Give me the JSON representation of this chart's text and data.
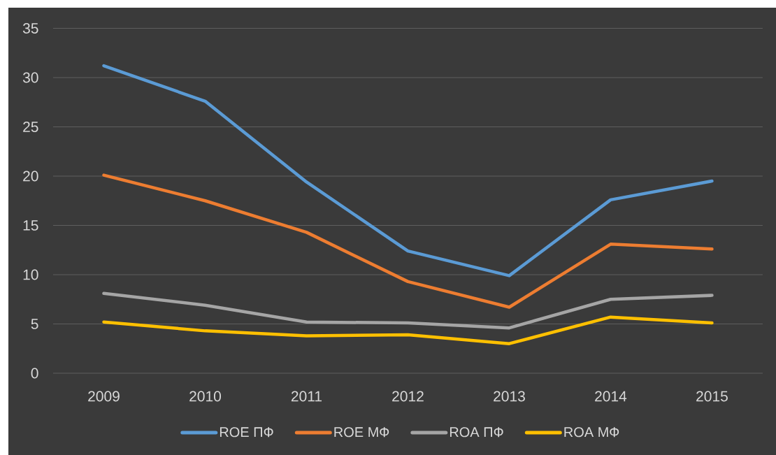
{
  "chart_data": {
    "type": "line",
    "categories": [
      "2009",
      "2010",
      "2011",
      "2012",
      "2013",
      "2014",
      "2015"
    ],
    "series": [
      {
        "name": "ROE ПФ",
        "color": "#5b9bd5",
        "values": [
          31.2,
          27.6,
          19.4,
          12.4,
          9.9,
          17.6,
          19.5
        ]
      },
      {
        "name": "ROE МФ",
        "color": "#ed7d31",
        "values": [
          20.1,
          17.5,
          14.3,
          9.3,
          6.7,
          13.1,
          12.6
        ]
      },
      {
        "name": "ROA ПФ",
        "color": "#a5a5a5",
        "values": [
          8.1,
          6.9,
          5.2,
          5.1,
          4.6,
          7.5,
          7.9
        ]
      },
      {
        "name": "ROA МФ",
        "color": "#ffc000",
        "values": [
          5.2,
          4.3,
          3.8,
          3.9,
          3.0,
          5.7,
          5.1
        ]
      }
    ],
    "ylim": [
      0,
      35
    ],
    "yticks": [
      0,
      5,
      10,
      15,
      20,
      25,
      30,
      35
    ],
    "grid": "y",
    "legend": "bottom"
  }
}
